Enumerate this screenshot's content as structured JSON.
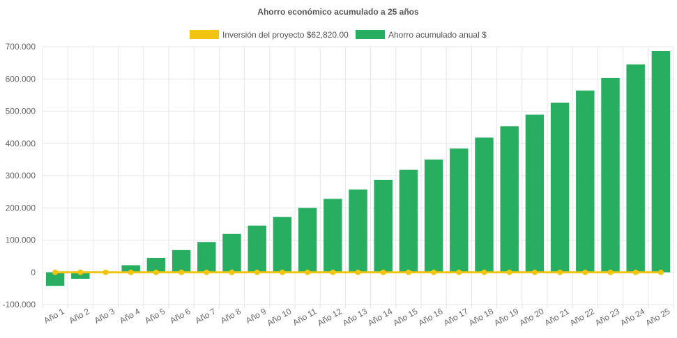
{
  "chart_data": {
    "type": "bar",
    "title": "Ahorro económico acumulado a 25 años",
    "categories": [
      "Año 1",
      "Año 2",
      "Año 3",
      "Año 4",
      "Año 5",
      "Año 6",
      "Año 7",
      "Año 8",
      "Año 9",
      "Año 10",
      "Año 11",
      "Año 12",
      "Año 13",
      "Año 14",
      "Año 15",
      "Año 16",
      "Año 17",
      "Año 18",
      "Año 19",
      "Año 20",
      "Año 21",
      "Año 22",
      "Año 23",
      "Año 24",
      "Año 25"
    ],
    "series": [
      {
        "name": "Inversión del proyecto $62,820.00",
        "type": "line",
        "color": "#f1c40f",
        "values": [
          0,
          0,
          0,
          0,
          0,
          0,
          0,
          0,
          0,
          0,
          0,
          0,
          0,
          0,
          0,
          0,
          0,
          0,
          0,
          0,
          0,
          0,
          0,
          0,
          0
        ]
      },
      {
        "name": "Ahorro acumulado anual $",
        "type": "bar",
        "color": "#27ae60",
        "values": [
          -42000,
          -20000,
          0,
          22000,
          45000,
          69000,
          94000,
          119000,
          145000,
          172000,
          200000,
          228000,
          257000,
          287000,
          318000,
          350000,
          384000,
          418000,
          453000,
          489000,
          526000,
          564000,
          603000,
          645000,
          687000
        ]
      }
    ],
    "ylim": [
      -100000,
      700000
    ],
    "yticks": [
      {
        "value": 700000,
        "label": "700.000"
      },
      {
        "value": 600000,
        "label": "600.000"
      },
      {
        "value": 500000,
        "label": "500.000"
      },
      {
        "value": 400000,
        "label": "400.000"
      },
      {
        "value": 300000,
        "label": "300.000"
      },
      {
        "value": 200000,
        "label": "200.000"
      },
      {
        "value": 100000,
        "label": "100.000"
      },
      {
        "value": 0,
        "label": "0"
      },
      {
        "value": -100000,
        "label": "-100.000"
      }
    ],
    "grid": true,
    "legend_position": "top"
  }
}
